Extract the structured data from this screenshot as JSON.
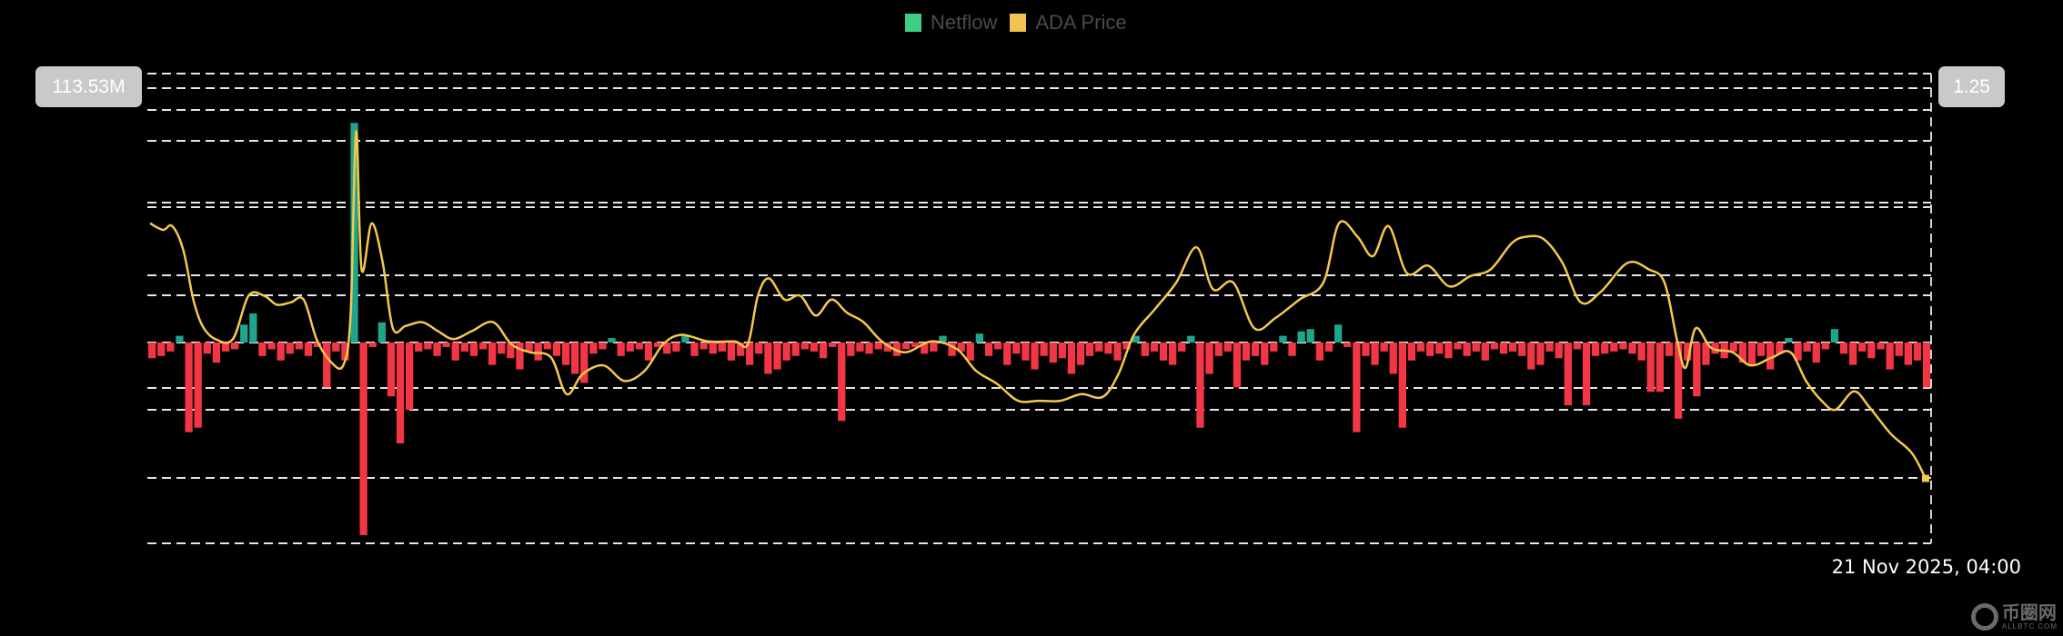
{
  "chart_data": {
    "type": "bar",
    "title": "",
    "legend": [
      {
        "name": "Netflow",
        "color": "#3ccf82"
      },
      {
        "name": "ADA Price",
        "color": "#f0c24f"
      }
    ],
    "legend_position": "top-center",
    "left_axis_label": "113.53M",
    "right_axis_label": "1.25",
    "x_label_last": "21 Nov 2025, 04:00",
    "grid": true,
    "colors": {
      "positive": "#1fa58c",
      "negative": "#f23645",
      "price": "#f5c84c"
    },
    "netflow_unit": "M",
    "netflow_ylim": [
      -90,
      113.53
    ],
    "price_ylim": [
      0.42,
      1.25
    ],
    "series": [
      {
        "name": "Netflow",
        "type": "bar",
        "values": [
          -7,
          -6,
          -4,
          3,
          -40,
          -38,
          -5,
          -9,
          -4,
          -3,
          8,
          13,
          -6,
          -3,
          -8,
          -5,
          -3,
          -6,
          -2,
          -20,
          -4,
          -8,
          98,
          -86,
          -2,
          9,
          -24,
          -45,
          -30,
          -4,
          -3,
          -6,
          -2,
          -8,
          -4,
          -6,
          -3,
          -10,
          -5,
          -7,
          -12,
          -4,
          -8,
          -3,
          -6,
          -10,
          -14,
          -18,
          -5,
          -3,
          2,
          -6,
          -4,
          -3,
          -8,
          -2,
          -5,
          -4,
          3,
          -6,
          -3,
          -5,
          -4,
          -8,
          -6,
          -10,
          -5,
          -14,
          -12,
          -8,
          -6,
          -3,
          -4,
          -7,
          -2,
          -35,
          -6,
          -4,
          -5,
          -3,
          -4,
          -6,
          -3,
          -2,
          -5,
          -4,
          3,
          -6,
          -4,
          -8,
          4,
          -6,
          -3,
          -10,
          -5,
          -8,
          -12,
          -6,
          -9,
          -7,
          -14,
          -10,
          -6,
          -4,
          -5,
          -8,
          -3,
          3,
          -6,
          -4,
          -8,
          -10,
          -4,
          3,
          -38,
          -14,
          -6,
          -4,
          -20,
          -8,
          -6,
          -10,
          -4,
          3,
          -6,
          5,
          6,
          -8,
          -4,
          8,
          -2,
          -40,
          -6,
          -10,
          -4,
          -14,
          -38,
          -8,
          -4,
          -6,
          -5,
          -7,
          -3,
          -6,
          -4,
          -8,
          -3,
          -5,
          -4,
          -6,
          -12,
          -10,
          -4,
          -7,
          -28,
          -3,
          -28,
          -6,
          -5,
          -4,
          -3,
          -5,
          -8,
          -22,
          -22,
          -6,
          -34,
          -8,
          -24,
          -10,
          -5,
          -7,
          -4,
          -9,
          -10,
          -6,
          -12,
          -5,
          2,
          -8,
          -4,
          -9,
          -3,
          6,
          -5,
          -10,
          -4,
          -7,
          -3,
          -12,
          -6,
          -10,
          -8,
          -20
        ]
      },
      {
        "name": "ADA Price",
        "type": "line",
        "points": [
          [
            0.3,
            0.959
          ],
          [
            1.7,
            0.945
          ],
          [
            2.7,
            0.953
          ],
          [
            3.9,
            0.903
          ],
          [
            5,
            0.797
          ],
          [
            6,
            0.741
          ],
          [
            7.4,
            0.713
          ],
          [
            9.3,
            0.713
          ],
          [
            11,
            0.805
          ],
          [
            12.7,
            0.805
          ],
          [
            14.1,
            0.786
          ],
          [
            15.6,
            0.791
          ],
          [
            17,
            0.797
          ],
          [
            18.4,
            0.713
          ],
          [
            19.9,
            0.666
          ],
          [
            21.3,
            0.657
          ],
          [
            22.1,
            0.763
          ],
          [
            22.7,
            1.154
          ],
          [
            23.3,
            0.861
          ],
          [
            24.4,
            0.959
          ],
          [
            25.6,
            0.875
          ],
          [
            26.7,
            0.736
          ],
          [
            28.1,
            0.741
          ],
          [
            29.9,
            0.749
          ],
          [
            31.6,
            0.73
          ],
          [
            33.3,
            0.713
          ],
          [
            35.3,
            0.73
          ],
          [
            37.6,
            0.749
          ],
          [
            39.6,
            0.702
          ],
          [
            41.6,
            0.685
          ],
          [
            43.9,
            0.674
          ],
          [
            45.6,
            0.596
          ],
          [
            47.3,
            0.638
          ],
          [
            49.6,
            0.657
          ],
          [
            51.9,
            0.624
          ],
          [
            54.1,
            0.646
          ],
          [
            56.1,
            0.702
          ],
          [
            58.1,
            0.722
          ],
          [
            61,
            0.708
          ],
          [
            63.9,
            0.708
          ],
          [
            65.3,
            0.702
          ],
          [
            66.4,
            0.805
          ],
          [
            67.6,
            0.842
          ],
          [
            69.3,
            0.797
          ],
          [
            71,
            0.805
          ],
          [
            72.7,
            0.763
          ],
          [
            74.4,
            0.797
          ],
          [
            76.1,
            0.769
          ],
          [
            77.9,
            0.749
          ],
          [
            79.9,
            0.708
          ],
          [
            82.4,
            0.685
          ],
          [
            85.3,
            0.708
          ],
          [
            88.1,
            0.691
          ],
          [
            90.1,
            0.646
          ],
          [
            92.4,
            0.618
          ],
          [
            94.7,
            0.582
          ],
          [
            97,
            0.582
          ],
          [
            99.3,
            0.582
          ],
          [
            101.6,
            0.596
          ],
          [
            103.9,
            0.59
          ],
          [
            105.6,
            0.638
          ],
          [
            107.3,
            0.722
          ],
          [
            109.6,
            0.777
          ],
          [
            111.9,
            0.833
          ],
          [
            114.1,
            0.908
          ],
          [
            115.9,
            0.819
          ],
          [
            118.1,
            0.833
          ],
          [
            120.4,
            0.736
          ],
          [
            122.7,
            0.758
          ],
          [
            125.3,
            0.797
          ],
          [
            127.9,
            0.833
          ],
          [
            129.6,
            0.959
          ],
          [
            131.6,
            0.931
          ],
          [
            133.3,
            0.889
          ],
          [
            135,
            0.953
          ],
          [
            137,
            0.853
          ],
          [
            139.3,
            0.869
          ],
          [
            141.6,
            0.825
          ],
          [
            143.9,
            0.847
          ],
          [
            146.1,
            0.861
          ],
          [
            148.4,
            0.917
          ],
          [
            150.1,
            0.931
          ],
          [
            151.9,
            0.925
          ],
          [
            153.9,
            0.875
          ],
          [
            155.9,
            0.791
          ],
          [
            158.1,
            0.814
          ],
          [
            161,
            0.875
          ],
          [
            163.3,
            0.861
          ],
          [
            165,
            0.833
          ],
          [
            166.4,
            0.708
          ],
          [
            167.3,
            0.652
          ],
          [
            168.4,
            0.736
          ],
          [
            170.1,
            0.694
          ],
          [
            172.4,
            0.685
          ],
          [
            174.4,
            0.657
          ],
          [
            176.7,
            0.674
          ],
          [
            178.7,
            0.685
          ],
          [
            180.4,
            0.624
          ],
          [
            182.1,
            0.582
          ],
          [
            183.6,
            0.563
          ],
          [
            185.6,
            0.602
          ],
          [
            187.3,
            0.568
          ],
          [
            189.6,
            0.512
          ],
          [
            191.9,
            0.471
          ],
          [
            193.4,
            0.417
          ]
        ]
      }
    ]
  },
  "watermark": {
    "name": "币圈网",
    "site": "ALLBTC.COM"
  }
}
